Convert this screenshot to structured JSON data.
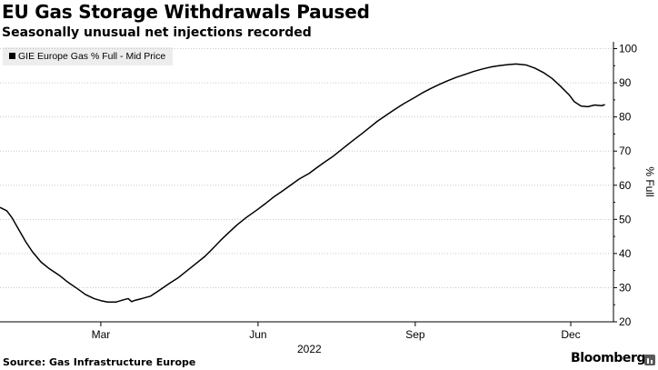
{
  "header": {
    "title": "EU Gas Storage Withdrawals Paused",
    "subtitle": "Seasonally unusual net injections recorded"
  },
  "footer": {
    "source": "Source: Gas Infrastructure Europe",
    "brand": "Bloomberg"
  },
  "colors": {
    "line": "#000000",
    "grid": "#c8c8c8",
    "legend_bg": "#ededed"
  },
  "icons": {
    "brand": "bloomberg-chart-icon"
  },
  "chart_data": {
    "type": "line",
    "title": "EU Gas Storage Withdrawals Paused",
    "subtitle": "Seasonally unusual net injections recorded",
    "ylabel": "% Full",
    "xlabel": "2022",
    "year_label": "2022",
    "ylim": [
      20,
      102
    ],
    "yticks": [
      20,
      30,
      40,
      50,
      60,
      70,
      80,
      90,
      100
    ],
    "x_ticks": [
      {
        "label": "Mar",
        "date": "2022-03-01"
      },
      {
        "label": "Jun",
        "date": "2022-06-01"
      },
      {
        "label": "Sep",
        "date": "2022-09-01"
      },
      {
        "label": "Dec",
        "date": "2022-12-01"
      }
    ],
    "legend": [
      "GIE Europe Gas % Full - Mid Price"
    ],
    "legend_position": "top-left",
    "grid": "horizontal dotted",
    "axis_side": "right",
    "series": [
      {
        "name": "GIE Europe Gas % Full - Mid Price",
        "points": [
          [
            "2022-01-01",
            53.5
          ],
          [
            "2022-01-05",
            52.5
          ],
          [
            "2022-01-08",
            50.5
          ],
          [
            "2022-01-12",
            47.0
          ],
          [
            "2022-01-16",
            43.5
          ],
          [
            "2022-01-20",
            40.5
          ],
          [
            "2022-01-25",
            37.5
          ],
          [
            "2022-01-30",
            35.5
          ],
          [
            "2022-02-05",
            33.5
          ],
          [
            "2022-02-10",
            31.5
          ],
          [
            "2022-02-15",
            29.8
          ],
          [
            "2022-02-20",
            28.0
          ],
          [
            "2022-02-25",
            26.8
          ],
          [
            "2022-03-01",
            26.2
          ],
          [
            "2022-03-05",
            25.8
          ],
          [
            "2022-03-10",
            25.8
          ],
          [
            "2022-03-14",
            26.4
          ],
          [
            "2022-03-17",
            26.8
          ],
          [
            "2022-03-19",
            25.9
          ],
          [
            "2022-03-21",
            26.3
          ],
          [
            "2022-03-25",
            26.8
          ],
          [
            "2022-03-30",
            27.5
          ],
          [
            "2022-04-05",
            29.5
          ],
          [
            "2022-04-10",
            31.2
          ],
          [
            "2022-04-15",
            32.8
          ],
          [
            "2022-04-20",
            34.8
          ],
          [
            "2022-04-25",
            36.8
          ],
          [
            "2022-05-01",
            39.2
          ],
          [
            "2022-05-05",
            41.2
          ],
          [
            "2022-05-10",
            43.8
          ],
          [
            "2022-05-15",
            46.2
          ],
          [
            "2022-05-20",
            48.5
          ],
          [
            "2022-05-25",
            50.5
          ],
          [
            "2022-06-01",
            53.0
          ],
          [
            "2022-06-05",
            54.5
          ],
          [
            "2022-06-10",
            56.5
          ],
          [
            "2022-06-15",
            58.2
          ],
          [
            "2022-06-20",
            60.0
          ],
          [
            "2022-06-25",
            61.8
          ],
          [
            "2022-07-01",
            63.5
          ],
          [
            "2022-07-05",
            65.0
          ],
          [
            "2022-07-10",
            66.8
          ],
          [
            "2022-07-15",
            68.5
          ],
          [
            "2022-07-20",
            70.5
          ],
          [
            "2022-07-25",
            72.5
          ],
          [
            "2022-08-01",
            75.2
          ],
          [
            "2022-08-05",
            76.8
          ],
          [
            "2022-08-10",
            78.8
          ],
          [
            "2022-08-15",
            80.5
          ],
          [
            "2022-08-20",
            82.2
          ],
          [
            "2022-08-25",
            83.8
          ],
          [
            "2022-09-01",
            85.8
          ],
          [
            "2022-09-05",
            87.0
          ],
          [
            "2022-09-10",
            88.3
          ],
          [
            "2022-09-15",
            89.5
          ],
          [
            "2022-09-20",
            90.6
          ],
          [
            "2022-09-25",
            91.6
          ],
          [
            "2022-10-01",
            92.6
          ],
          [
            "2022-10-05",
            93.3
          ],
          [
            "2022-10-10",
            94.0
          ],
          [
            "2022-10-15",
            94.6
          ],
          [
            "2022-10-20",
            95.0
          ],
          [
            "2022-10-25",
            95.3
          ],
          [
            "2022-10-30",
            95.5
          ],
          [
            "2022-11-05",
            95.2
          ],
          [
            "2022-11-10",
            94.3
          ],
          [
            "2022-11-15",
            93.0
          ],
          [
            "2022-11-20",
            91.3
          ],
          [
            "2022-11-25",
            89.0
          ],
          [
            "2022-11-30",
            86.5
          ],
          [
            "2022-12-03",
            84.5
          ],
          [
            "2022-12-07",
            83.2
          ],
          [
            "2022-12-11",
            83.0
          ],
          [
            "2022-12-15",
            83.5
          ],
          [
            "2022-12-19",
            83.3
          ],
          [
            "2022-12-21",
            83.6
          ]
        ]
      }
    ]
  }
}
